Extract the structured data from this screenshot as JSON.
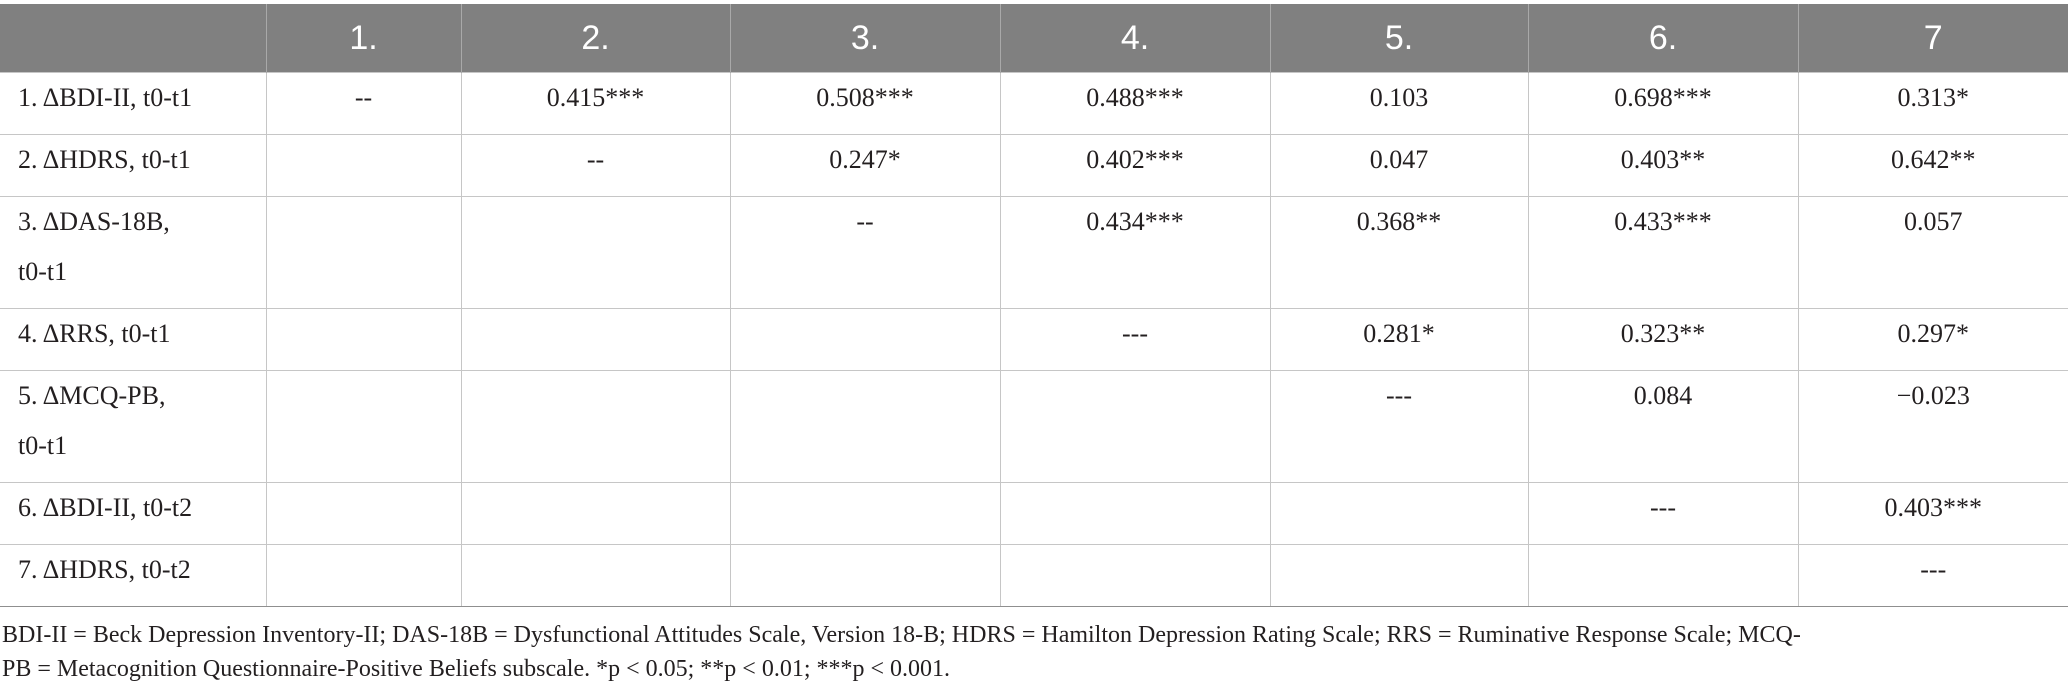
{
  "table": {
    "headers": [
      "",
      "1.",
      "2.",
      "3.",
      "4.",
      "5.",
      "6.",
      "7"
    ],
    "rows": [
      {
        "label": "1. ΔBDI-II, t0-t1",
        "cells": [
          "--",
          "0.415***",
          "0.508***",
          "0.488***",
          "0.103",
          "0.698***",
          "0.313*"
        ]
      },
      {
        "label": "2. ΔHDRS, t0-t1",
        "cells": [
          "",
          "--",
          "0.247*",
          "0.402***",
          "0.047",
          "0.403**",
          "0.642**"
        ]
      },
      {
        "label": "3. ΔDAS-18B,\nt0-t1",
        "cells": [
          "",
          "",
          "--",
          "0.434***",
          "0.368**",
          "0.433***",
          "0.057"
        ]
      },
      {
        "label": "4. ΔRRS, t0-t1",
        "cells": [
          "",
          "",
          "",
          "---",
          "0.281*",
          "0.323**",
          "0.297*"
        ]
      },
      {
        "label": "5. ΔMCQ-PB,\nt0-t1",
        "cells": [
          "",
          "",
          "",
          "",
          "---",
          "0.084",
          "−0.023"
        ]
      },
      {
        "label": "6. ΔBDI-II, t0-t2",
        "cells": [
          "",
          "",
          "",
          "",
          "",
          "---",
          "0.403***"
        ]
      },
      {
        "label": "7. ΔHDRS, t0-t2",
        "cells": [
          "",
          "",
          "",
          "",
          "",
          "",
          "---"
        ]
      }
    ]
  },
  "note": {
    "line1": "BDI-II = Beck Depression Inventory-II; DAS-18B = Dysfunctional Attitudes Scale, Version 18-B; HDRS = Hamilton Depression Rating Scale; RRS = Ruminative Response Scale; MCQ-",
    "line2": "PB = Metacognition Questionnaire-Positive Beliefs subscale. *p < 0.05; **p < 0.01; ***p < 0.001."
  },
  "colors": {
    "header_bg": "#808080",
    "header_text": "#ffffff",
    "grid": "#c6c6c6",
    "text": "#231f20"
  }
}
